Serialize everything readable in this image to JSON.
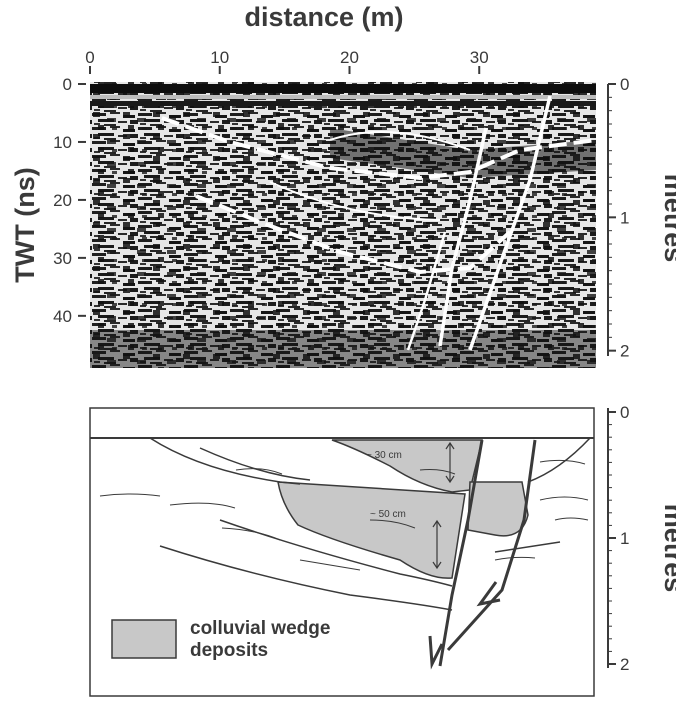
{
  "top_panel": {
    "x_axis": {
      "title": "distance (m)",
      "ticks": [
        "0",
        "10",
        "20",
        "30"
      ],
      "tick_values": [
        0,
        10,
        20,
        30
      ],
      "range": [
        0,
        39
      ]
    },
    "y_left_axis": {
      "title": "TWT (ns)",
      "ticks": [
        "0",
        "10",
        "20",
        "30",
        "40"
      ],
      "tick_values": [
        0,
        10,
        20,
        30,
        40
      ],
      "range": [
        0,
        49
      ]
    },
    "y_right_axis": {
      "title": "metres",
      "ticks": [
        "0",
        "1",
        "2"
      ],
      "tick_values": [
        0,
        1,
        2
      ],
      "range": [
        0,
        2.13
      ]
    }
  },
  "bottom_panel": {
    "y_right_axis": {
      "title": "metres",
      "ticks": [
        "0",
        "1",
        "2"
      ],
      "tick_values": [
        0,
        1,
        2
      ]
    },
    "annotations": {
      "upper_thickness": "~ 30 cm",
      "lower_thickness": "~ 50 cm"
    },
    "legend": {
      "line1": "colluvial wedge",
      "line2": "deposits",
      "swatch_color": "#c8c8c8"
    }
  },
  "colors": {
    "ink": "#3a3a3a",
    "radar_dark": "#1a1a1a",
    "radar_light": "#e8e8e8",
    "wedge_fill": "#c8c8c8"
  }
}
